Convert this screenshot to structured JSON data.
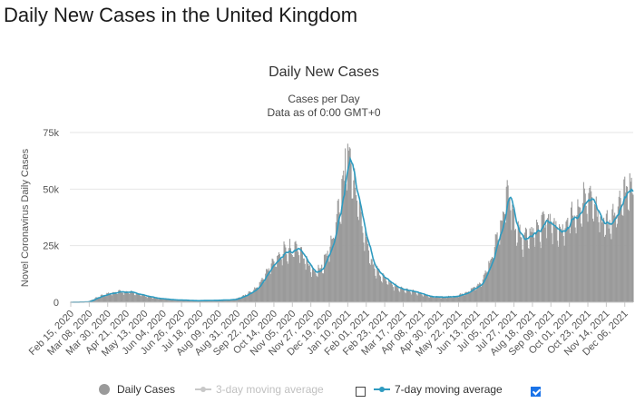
{
  "page": {
    "title": "Daily New Cases in the United Kingdom"
  },
  "chart_data": {
    "type": "bar",
    "title": "Daily New Cases",
    "subtitle_1": "Cases per Day",
    "subtitle_2": "Data as of 0:00 GMT+0",
    "ylabel": "Novel Coronavirus Daily Cases",
    "xlabel": "",
    "ylim": [
      0,
      75000
    ],
    "y_ticks": [
      0,
      25000,
      50000,
      75000
    ],
    "y_tick_labels": [
      "0",
      "25k",
      "50k",
      "75k"
    ],
    "x_ticks": [
      "Feb 15, 2020",
      "Mar 08, 2020",
      "Mar 30, 2020",
      "Apr 21, 2020",
      "May 13, 2020",
      "Jun 04, 2020",
      "Jun 26, 2020",
      "Jul 18, 2020",
      "Aug 09, 2020",
      "Aug 31, 2020",
      "Sep 22, 2020",
      "Oct 14, 2020",
      "Nov 05, 2020",
      "Nov 27, 2020",
      "Dec 19, 2020",
      "Jan 10, 2021",
      "Feb 01, 2021",
      "Feb 23, 2021",
      "Mar 17, 2021",
      "Apr 08, 2021",
      "Apr 30, 2021",
      "May 22, 2021",
      "Jun 13, 2021",
      "Jul 05, 2021",
      "Jul 27, 2021",
      "Aug 18, 2021",
      "Sep 09, 2021",
      "Oct 01, 2021",
      "Oct 23, 2021",
      "Nov 14, 2021",
      "Dec 06, 2021"
    ],
    "x_tick_days": [
      0,
      22,
      44,
      66,
      88,
      110,
      132,
      154,
      176,
      198,
      220,
      242,
      264,
      286,
      308,
      330,
      352,
      374,
      396,
      418,
      440,
      462,
      484,
      506,
      528,
      550,
      572,
      594,
      616,
      638,
      660
    ],
    "series": [
      {
        "name": "Daily Cases",
        "type": "bar",
        "color": "#9a9a9a",
        "note": "weekly anchor values (day offset from Feb 15, 2020, cases); daily bars interpolated with weekday variation",
        "anchors": [
          [
            0,
            10
          ],
          [
            20,
            150
          ],
          [
            34,
            2500
          ],
          [
            48,
            4200
          ],
          [
            58,
            4700
          ],
          [
            70,
            4500
          ],
          [
            84,
            3200
          ],
          [
            100,
            1800
          ],
          [
            120,
            1100
          ],
          [
            150,
            700
          ],
          [
            175,
            900
          ],
          [
            195,
            1200
          ],
          [
            210,
            3500
          ],
          [
            222,
            6500
          ],
          [
            235,
            14000
          ],
          [
            248,
            21000
          ],
          [
            262,
            23000
          ],
          [
            272,
            24000
          ],
          [
            280,
            18000
          ],
          [
            290,
            13500
          ],
          [
            300,
            16000
          ],
          [
            312,
            28000
          ],
          [
            322,
            47000
          ],
          [
            328,
            59000
          ],
          [
            333,
            62000
          ],
          [
            340,
            50000
          ],
          [
            348,
            33000
          ],
          [
            360,
            16000
          ],
          [
            372,
            11000
          ],
          [
            385,
            7000
          ],
          [
            397,
            5500
          ],
          [
            410,
            4500
          ],
          [
            425,
            2800
          ],
          [
            440,
            2300
          ],
          [
            460,
            2600
          ],
          [
            475,
            5000
          ],
          [
            490,
            9000
          ],
          [
            500,
            18000
          ],
          [
            510,
            30000
          ],
          [
            517,
            42000
          ],
          [
            523,
            47000
          ],
          [
            530,
            32000
          ],
          [
            538,
            28000
          ],
          [
            550,
            30000
          ],
          [
            560,
            34000
          ],
          [
            568,
            37000
          ],
          [
            575,
            33000
          ],
          [
            585,
            32000
          ],
          [
            595,
            36000
          ],
          [
            606,
            40000
          ],
          [
            614,
            46000
          ],
          [
            620,
            44000
          ],
          [
            630,
            38000
          ],
          [
            640,
            34000
          ],
          [
            650,
            40000
          ],
          [
            660,
            47000
          ],
          [
            667,
            51000
          ]
        ]
      },
      {
        "name": "3-day moving average",
        "type": "line",
        "color": "#c0c0c0",
        "visible": false
      },
      {
        "name": "7-day moving average",
        "type": "line",
        "color": "#2e9bc0",
        "visible": true
      }
    ]
  },
  "legend": {
    "daily_cases": "Daily Cases",
    "three_day": "3-day moving average",
    "seven_day": "7-day moving average"
  }
}
